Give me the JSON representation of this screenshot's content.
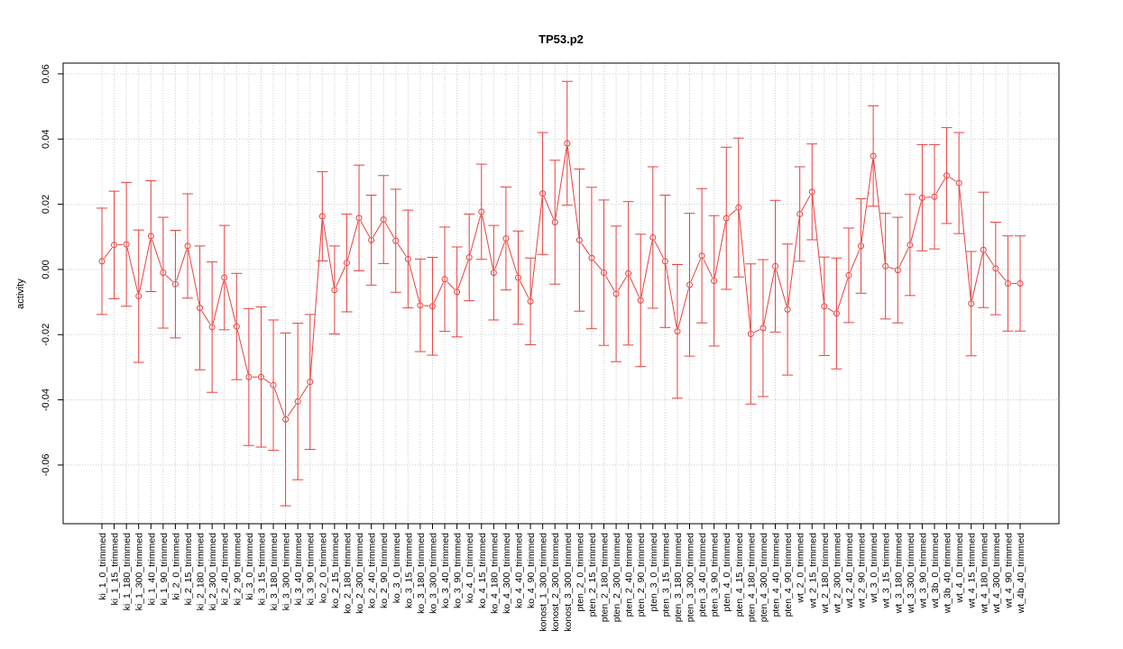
{
  "chart_data": {
    "type": "errorbar",
    "title": "TP53.p2",
    "ylabel": "activity",
    "color": "#e8413f",
    "grid": true,
    "categories": [
      "ki_1_0_trimmed",
      "ki_1_15_trimmed",
      "ki_1_180_trimmed",
      "ki_1_300_trimmed",
      "ki_1_40_trimmed",
      "ki_1_90_trimmed",
      "ki_2_0_trimmed",
      "ki_2_15_trimmed",
      "ki_2_180_trimmed",
      "ki_2_300_trimmed",
      "ki_2_40_trimmed",
      "ki_2_90_trimmed",
      "ki_3_0_trimmed",
      "ki_3_15_trimmed",
      "ki_3_180_trimmed",
      "ki_3_300_trimmed",
      "ki_3_40_trimmed",
      "ki_3_90_trimmed",
      "ko_2_0_trimmed",
      "ko_2_15_trimmed",
      "ko_2_180_trimmed",
      "ko_2_300_trimmed",
      "ko_2_40_trimmed",
      "ko_2_90_trimmed",
      "ko_3_0_trimmed",
      "ko_3_15_trimmed",
      "ko_3_180_trimmed",
      "ko_3_300_trimmed",
      "ko_3_40_trimmed",
      "ko_3_90_trimmed",
      "ko_4_0_trimmed",
      "ko_4_15_trimmed",
      "ko_4_180_trimmed",
      "ko_4_300_trimmed",
      "ko_4_40_trimmed",
      "ko_4_90_trimmed",
      "konost_1_300_trimmed",
      "konost_2_300_trimmed",
      "konost_3_300_trimmed",
      "pten_2_0_trimmed",
      "pten_2_15_trimmed",
      "pten_2_180_trimmed",
      "pten_2_300_trimmed",
      "pten_2_40_trimmed",
      "pten_2_90_trimmed",
      "pten_3_0_trimmed",
      "pten_3_15_trimmed",
      "pten_3_180_trimmed",
      "pten_3_300_trimmed",
      "pten_3_40_trimmed",
      "pten_3_90_trimmed",
      "pten_4_0_trimmed",
      "pten_4_15_trimmed",
      "pten_4_180_trimmed",
      "pten_4_300_trimmed",
      "pten_4_40_trimmed",
      "pten_4_90_trimmed",
      "wt_2_0_trimmed",
      "wt_2_15_trimmed",
      "wt_2_180_trimmed",
      "wt_2_300_trimmed",
      "wt_2_40_trimmed",
      "wt_2_90_trimmed",
      "wt_3_0_trimmed",
      "wt_3_15_trimmed",
      "wt_3_180_trimmed",
      "wt_3_300_trimmed",
      "wt_3_90_trimmed",
      "wt_3b_0_trimmed",
      "wt_3b_40_trimmed",
      "wt_4_0_trimmed",
      "wt_4_15_trimmed",
      "wt_4_180_trimmed",
      "wt_4_300_trimmed",
      "wt_4_90_trimmed",
      "wt_4b_40_trimmed"
    ],
    "values": [
      0.0025,
      0.0075,
      0.0077,
      -0.0082,
      0.0102,
      -0.001,
      -0.0045,
      0.0072,
      -0.0118,
      -0.0177,
      -0.0025,
      -0.0175,
      -0.033,
      -0.033,
      -0.0355,
      -0.046,
      -0.0405,
      -0.0345,
      0.0163,
      -0.0063,
      0.002,
      0.0158,
      0.009,
      0.0153,
      0.0088,
      0.0032,
      -0.011,
      -0.0113,
      -0.003,
      -0.0069,
      0.0037,
      0.0177,
      -0.001,
      0.0095,
      -0.0025,
      -0.0098,
      0.0233,
      0.0145,
      0.0387,
      0.009,
      0.0035,
      -0.001,
      -0.0075,
      -0.0012,
      -0.0095,
      0.0098,
      0.0025,
      -0.019,
      -0.0047,
      0.0042,
      -0.0035,
      0.0157,
      0.019,
      -0.0198,
      -0.018,
      0.001,
      -0.0123,
      0.017,
      0.0238,
      -0.0113,
      -0.0135,
      -0.0018,
      0.0072,
      0.0348,
      0.001,
      -0.0002,
      0.0075,
      0.022,
      0.0223,
      0.0288,
      0.0265,
      -0.0105,
      0.006,
      0.0003,
      -0.0043,
      -0.0043
    ],
    "errors": [
      0.0163,
      0.0165,
      0.019,
      0.0203,
      0.017,
      0.017,
      0.0165,
      0.016,
      0.019,
      0.02,
      0.016,
      0.0163,
      0.021,
      0.0215,
      0.02,
      0.0265,
      0.024,
      0.0207,
      0.0137,
      0.0135,
      0.015,
      0.0162,
      0.0138,
      0.0135,
      0.0158,
      0.015,
      0.0142,
      0.015,
      0.016,
      0.0138,
      0.0133,
      0.0146,
      0.0145,
      0.0158,
      0.0143,
      0.0133,
      0.0187,
      0.019,
      0.019,
      0.0218,
      0.0217,
      0.0223,
      0.0208,
      0.022,
      0.0203,
      0.0217,
      0.0203,
      0.0205,
      0.0219,
      0.0206,
      0.02,
      0.0218,
      0.0213,
      0.0215,
      0.021,
      0.0202,
      0.0201,
      0.0145,
      0.0147,
      0.0151,
      0.017,
      0.0145,
      0.0145,
      0.0154,
      0.0162,
      0.0162,
      0.0155,
      0.0163,
      0.016,
      0.0147,
      0.0155,
      0.016,
      0.0177,
      0.0142,
      0.0146,
      0.0146
    ],
    "ylim": [
      -0.078,
      0.0633
    ],
    "yticks": [
      -0.06,
      -0.04,
      -0.02,
      {
        "value": 0,
        "label": "0.00"
      },
      0.02,
      0.04,
      0.06
    ]
  }
}
